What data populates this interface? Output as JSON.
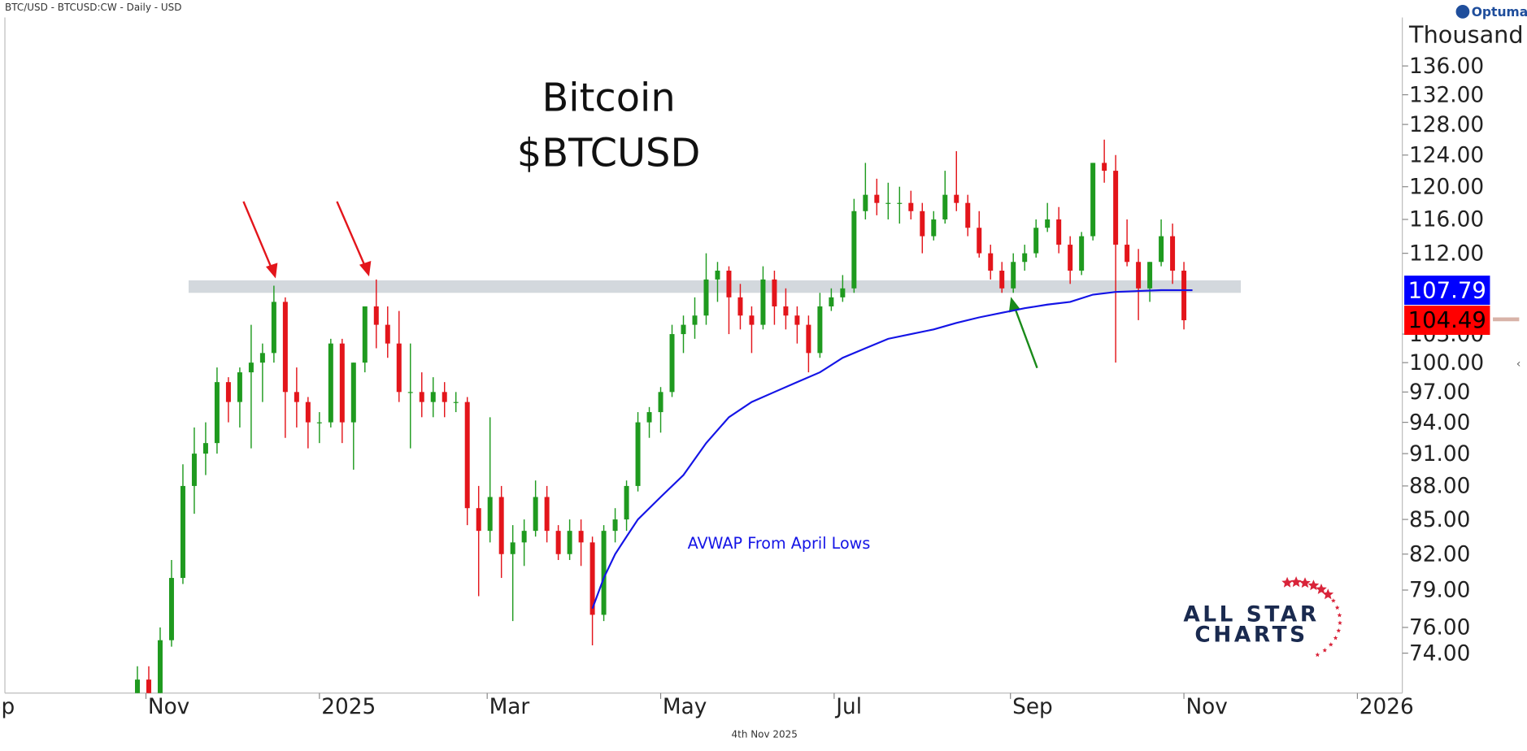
{
  "header": "BTC/USD - BTCUSD:CW - Daily - USD",
  "logo": "Optuma",
  "watermark": {
    "line1": "ALL STAR",
    "line2": "CHARTS"
  },
  "chart_data": {
    "type": "candlestick",
    "title": "Bitcoin",
    "subtitle": "$BTCUSD",
    "y_unit_label": "Thousand",
    "date_label": "4th Nov 2025",
    "annotation": "AVWAP From April Lows",
    "log_scale": true,
    "xlim": [
      -110.6,
      380.8
    ],
    "xticks": [
      {
        "value": -122,
        "label": "Sep"
      },
      {
        "value": -61,
        "label": "Nov"
      },
      {
        "value": 0,
        "label": "2025"
      },
      {
        "value": 59,
        "label": "Mar"
      },
      {
        "value": 120,
        "label": "May"
      },
      {
        "value": 181,
        "label": "Jul"
      },
      {
        "value": 243,
        "label": "Sep"
      },
      {
        "value": 304,
        "label": "Nov"
      },
      {
        "value": 365,
        "label": "2026"
      }
    ],
    "ylim": [
      71,
      143
    ],
    "yticks": [
      {
        "value": 74,
        "label": "74.00"
      },
      {
        "value": 76,
        "label": "76.00"
      },
      {
        "value": 79,
        "label": "79.00"
      },
      {
        "value": 82,
        "label": "82.00"
      },
      {
        "value": 85,
        "label": "85.00"
      },
      {
        "value": 88,
        "label": "88.00"
      },
      {
        "value": 91,
        "label": "91.00"
      },
      {
        "value": 94,
        "label": "94.00"
      },
      {
        "value": 97,
        "label": "97.00"
      },
      {
        "value": 100,
        "label": "100.00"
      },
      {
        "value": 103,
        "label": "103.00"
      },
      {
        "value": 112,
        "label": "112.00"
      },
      {
        "value": 116,
        "label": "116.00"
      },
      {
        "value": 120,
        "label": "120.00"
      },
      {
        "value": 124,
        "label": "124.00"
      },
      {
        "value": 128,
        "label": "128.00"
      },
      {
        "value": 132,
        "label": "132.00"
      },
      {
        "value": 136,
        "label": "136.00"
      }
    ],
    "candles": {
      "up_color": "#1f9a1f",
      "down_color": "#e3151b",
      "x": [
        -64,
        -60,
        -56,
        -52,
        -48,
        -44,
        -40,
        -36,
        -32,
        -28,
        -24,
        -20,
        -16,
        -12,
        -8,
        -4,
        0,
        4,
        8,
        12,
        16,
        20,
        24,
        28,
        32,
        36,
        40,
        44,
        48,
        52,
        56,
        60,
        64,
        68,
        72,
        76,
        80,
        84,
        88,
        92,
        96,
        100,
        104,
        108,
        112,
        116,
        120,
        124,
        128,
        132,
        136,
        140,
        144,
        148,
        152,
        156,
        160,
        164,
        168,
        172,
        176,
        180,
        184,
        188,
        192,
        196,
        200,
        204,
        208,
        212,
        216,
        220,
        224,
        228,
        232,
        236,
        240,
        244,
        248,
        252,
        256,
        260,
        264,
        268,
        272,
        276,
        280,
        284,
        288,
        292,
        296,
        300,
        304
      ],
      "open": [
        68,
        72,
        69.5,
        75,
        80,
        88,
        91,
        92,
        98,
        96,
        99,
        100,
        101,
        106.5,
        97,
        96,
        94,
        94,
        102,
        94,
        100,
        106,
        104,
        102,
        97,
        97,
        96,
        97,
        96,
        96,
        86,
        84,
        87,
        82,
        83,
        84,
        87,
        84,
        82,
        84,
        83,
        77,
        84,
        85,
        88,
        94,
        95,
        97,
        103,
        104,
        105,
        109,
        110,
        107,
        105,
        104,
        109,
        106,
        105,
        104,
        101,
        106,
        107,
        108,
        117,
        119,
        118,
        118,
        118,
        117,
        114,
        116,
        119,
        118,
        115,
        112,
        110,
        108,
        111,
        112,
        115,
        116,
        113,
        110,
        114,
        123,
        122,
        113,
        111,
        108,
        111,
        114,
        110
      ],
      "high": [
        73,
        73,
        76,
        81.5,
        90,
        93.5,
        94,
        99.5,
        98.5,
        99.5,
        104,
        102,
        108.3,
        107,
        99.5,
        96.5,
        95,
        102.5,
        102.5,
        100,
        106,
        109,
        106,
        105.5,
        102,
        99,
        98.5,
        98,
        97,
        96.5,
        88,
        94.5,
        88,
        84.5,
        85,
        88.5,
        88,
        84.5,
        85,
        85,
        83.5,
        84.5,
        86,
        88.5,
        95,
        95.5,
        97.5,
        104,
        105,
        107,
        112,
        111,
        110.5,
        108.5,
        106,
        110.5,
        110,
        108,
        106,
        105,
        107.5,
        108,
        109.5,
        118.5,
        123,
        121,
        120.5,
        120,
        119.5,
        118,
        117,
        122,
        124.5,
        119,
        117,
        113,
        111,
        112,
        113,
        116,
        118,
        117.5,
        114,
        114.5,
        123,
        126,
        124,
        116,
        112.5,
        111,
        116,
        115.5,
        111
      ],
      "low": [
        67.5,
        68,
        67,
        74.5,
        79.5,
        85.5,
        89,
        91,
        94,
        93.5,
        91.5,
        96,
        100,
        92.5,
        93.5,
        91.5,
        92,
        93.5,
        92,
        89.5,
        99,
        101.5,
        100.5,
        96,
        91.5,
        94.5,
        94.5,
        94.5,
        95,
        84.5,
        78.5,
        83,
        80,
        76.5,
        81,
        83.5,
        83,
        81.5,
        81.5,
        81,
        74.6,
        76.5,
        83,
        84,
        87.5,
        92.5,
        93,
        96.5,
        101,
        102.5,
        104,
        106.5,
        103,
        103.5,
        101,
        103.5,
        104,
        103.5,
        102,
        99,
        100.5,
        105.5,
        106.5,
        107.5,
        116,
        116.5,
        116,
        115.5,
        116,
        112,
        113.5,
        115.5,
        117,
        114,
        111.5,
        109,
        107.5,
        107.5,
        110,
        111.5,
        114.5,
        112,
        108.5,
        109.5,
        113.5,
        120.5,
        100,
        110.5,
        104.5,
        106.5,
        110.5,
        108.5,
        103.5
      ],
      "close": [
        72,
        69.5,
        75,
        80,
        88,
        91,
        92,
        98,
        96,
        99,
        100,
        101,
        106.5,
        97,
        96,
        94,
        94,
        102,
        94,
        100,
        106,
        104,
        102,
        97,
        97,
        96,
        97,
        96,
        96,
        86,
        84,
        87,
        82,
        83,
        84,
        87,
        84,
        82,
        84,
        83,
        77,
        84,
        85,
        88,
        94,
        95,
        97,
        103,
        104,
        105,
        109,
        110,
        107,
        105,
        104,
        109,
        106,
        105,
        104,
        101,
        106,
        107,
        108,
        117,
        119,
        118,
        118,
        118,
        117,
        114,
        116,
        119,
        118,
        115,
        112,
        110,
        108,
        111,
        112,
        115,
        116,
        113,
        110,
        114,
        123,
        122,
        113,
        111,
        108,
        111,
        114,
        110,
        104.49
      ]
    },
    "avwap": {
      "color": "#1414e6",
      "x": [
        96,
        100,
        104,
        108,
        112,
        120,
        128,
        136,
        144,
        152,
        160,
        168,
        176,
        184,
        192,
        200,
        208,
        216,
        224,
        232,
        240,
        248,
        256,
        264,
        272,
        280,
        288,
        296,
        307
      ],
      "values": [
        77.5,
        80,
        82,
        83.5,
        85,
        87,
        89,
        92,
        94.5,
        96,
        97,
        98,
        99,
        100.5,
        101.5,
        102.5,
        103,
        103.5,
        104.2,
        104.8,
        105.3,
        105.8,
        106.2,
        106.5,
        107.3,
        107.6,
        107.7,
        107.8,
        107.79
      ]
    },
    "zone": {
      "x": [
        -46,
        324
      ],
      "y": [
        107.5,
        108.9
      ],
      "color": "#d3d8dd"
    },
    "price_labels": [
      {
        "value": 107.79,
        "color": "#0000ff",
        "text_color": "#ffffff"
      },
      {
        "value": 104.49,
        "color": "#ff0000",
        "text_color": "#000000"
      }
    ]
  }
}
